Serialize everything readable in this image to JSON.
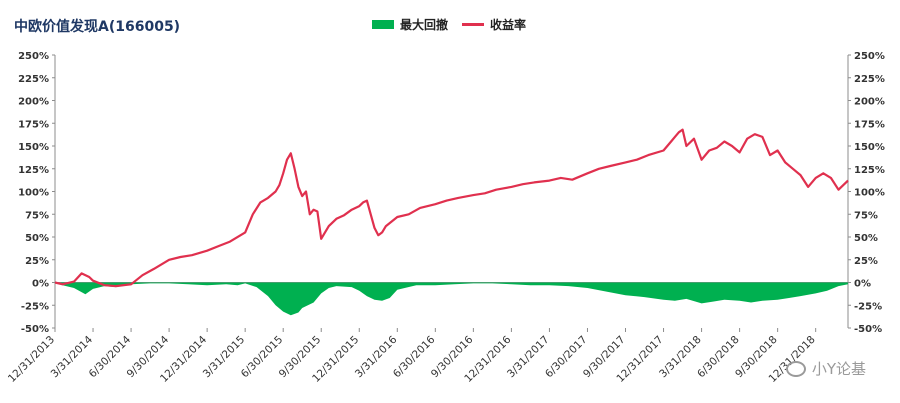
{
  "chart_data": {
    "type": "line",
    "title": "中欧价值发现A(166005)",
    "xlabel": "",
    "ylabel": "",
    "ylim": [
      -0.5,
      2.5
    ],
    "yticks": [
      "250%",
      "225%",
      "200%",
      "175%",
      "150%",
      "125%",
      "100%",
      "75%",
      "50%",
      "25%",
      "0%",
      "-25%",
      "-50%"
    ],
    "categories": [
      "12/31/2013",
      "3/31/2014",
      "6/30/2014",
      "9/30/2014",
      "12/31/2014",
      "3/31/2015",
      "6/30/2015",
      "9/30/2015",
      "12/31/2015",
      "3/31/2016",
      "6/30/2016",
      "9/30/2016",
      "12/31/2016",
      "3/31/2017",
      "6/30/2017",
      "9/30/2017",
      "12/31/2017",
      "3/31/2018",
      "6/30/2018",
      "9/30/2018",
      "12/31/2018"
    ],
    "legend_position": "top-center",
    "series": [
      {
        "name": "最大回撤",
        "kind": "area",
        "color": "#00b050",
        "x": [
          0,
          0.2,
          0.5,
          0.8,
          1.0,
          1.3,
          1.6,
          2.0,
          2.5,
          3.0,
          3.5,
          4.0,
          4.5,
          4.8,
          5.0,
          5.3,
          5.6,
          5.8,
          6.0,
          6.2,
          6.4,
          6.5,
          6.8,
          7.0,
          7.2,
          7.4,
          7.8,
          8.0,
          8.2,
          8.4,
          8.6,
          8.8,
          9.0,
          9.5,
          10.0,
          10.5,
          11.0,
          11.5,
          12.0,
          12.5,
          13.0,
          13.5,
          14.0,
          14.5,
          15.0,
          15.5,
          16.0,
          16.3,
          16.6,
          17.0,
          17.3,
          17.6,
          18.0,
          18.3,
          18.6,
          19.0,
          19.3,
          19.6,
          20.0,
          20.3,
          20.6,
          20.85
        ],
        "y": [
          0,
          -0.03,
          -0.06,
          -0.13,
          -0.07,
          -0.04,
          -0.05,
          -0.02,
          -0.01,
          -0.01,
          -0.02,
          -0.03,
          -0.02,
          -0.03,
          -0.01,
          -0.05,
          -0.15,
          -0.25,
          -0.32,
          -0.36,
          -0.33,
          -0.28,
          -0.22,
          -0.12,
          -0.06,
          -0.04,
          -0.05,
          -0.09,
          -0.15,
          -0.19,
          -0.2,
          -0.17,
          -0.08,
          -0.03,
          -0.03,
          -0.02,
          -0.01,
          -0.01,
          -0.02,
          -0.03,
          -0.03,
          -0.04,
          -0.06,
          -0.1,
          -0.14,
          -0.16,
          -0.19,
          -0.2,
          -0.18,
          -0.23,
          -0.21,
          -0.19,
          -0.2,
          -0.22,
          -0.2,
          -0.19,
          -0.17,
          -0.15,
          -0.12,
          -0.09,
          -0.04,
          -0.02
        ]
      },
      {
        "name": "收益率",
        "kind": "line",
        "color": "#e0304e",
        "x": [
          0,
          0.2,
          0.5,
          0.7,
          0.9,
          1.0,
          1.3,
          1.6,
          2.0,
          2.3,
          2.6,
          3.0,
          3.3,
          3.6,
          4.0,
          4.3,
          4.6,
          5.0,
          5.2,
          5.4,
          5.6,
          5.8,
          5.9,
          6.0,
          6.1,
          6.2,
          6.3,
          6.4,
          6.5,
          6.6,
          6.7,
          6.8,
          6.9,
          7.0,
          7.1,
          7.2,
          7.4,
          7.6,
          7.8,
          8.0,
          8.1,
          8.2,
          8.3,
          8.4,
          8.5,
          8.6,
          8.7,
          9.0,
          9.3,
          9.6,
          10.0,
          10.3,
          10.6,
          11.0,
          11.3,
          11.6,
          12.0,
          12.3,
          12.6,
          13.0,
          13.3,
          13.6,
          14.0,
          14.3,
          14.6,
          15.0,
          15.3,
          15.6,
          16.0,
          16.1,
          16.2,
          16.3,
          16.4,
          16.5,
          16.6,
          16.8,
          17.0,
          17.2,
          17.4,
          17.6,
          17.8,
          18.0,
          18.2,
          18.4,
          18.6,
          18.8,
          19.0,
          19.2,
          19.4,
          19.6,
          19.8,
          20.0,
          20.2,
          20.4,
          20.6,
          20.85
        ],
        "y": [
          0,
          -0.02,
          0.01,
          0.1,
          0.06,
          0.02,
          -0.03,
          -0.04,
          -0.02,
          0.08,
          0.15,
          0.25,
          0.28,
          0.3,
          0.35,
          0.4,
          0.45,
          0.55,
          0.75,
          0.88,
          0.93,
          1.0,
          1.07,
          1.2,
          1.35,
          1.42,
          1.25,
          1.05,
          0.95,
          1.0,
          0.75,
          0.8,
          0.78,
          0.48,
          0.55,
          0.62,
          0.7,
          0.74,
          0.8,
          0.84,
          0.88,
          0.9,
          0.75,
          0.6,
          0.52,
          0.55,
          0.62,
          0.72,
          0.75,
          0.82,
          0.86,
          0.9,
          0.93,
          0.96,
          0.98,
          1.02,
          1.05,
          1.08,
          1.1,
          1.12,
          1.15,
          1.13,
          1.2,
          1.25,
          1.28,
          1.32,
          1.35,
          1.4,
          1.45,
          1.5,
          1.55,
          1.6,
          1.65,
          1.68,
          1.5,
          1.58,
          1.35,
          1.45,
          1.48,
          1.55,
          1.5,
          1.43,
          1.58,
          1.63,
          1.6,
          1.4,
          1.45,
          1.32,
          1.25,
          1.18,
          1.05,
          1.15,
          1.2,
          1.15,
          1.02,
          1.12
        ]
      }
    ]
  },
  "watermark": "小Y论基"
}
